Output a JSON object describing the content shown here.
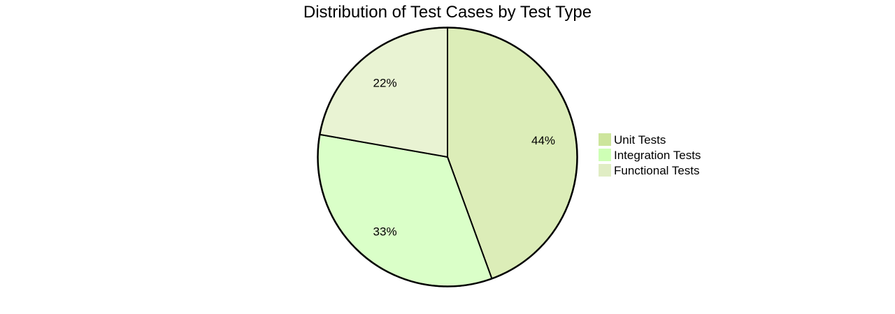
{
  "chart_data": {
    "type": "pie",
    "title": "Distribution of Test Cases by Test Type",
    "slices": [
      {
        "name": "Unit Tests",
        "value": 44,
        "label": "44%",
        "color": "#dcedb8",
        "legend_color": "#cde59c"
      },
      {
        "name": "Integration Tests",
        "value": 33,
        "label": "33%",
        "color": "#daffc8",
        "legend_color": "#ceffb5"
      },
      {
        "name": "Functional Tests",
        "value": 22,
        "label": "22%",
        "color": "#e9f3d3",
        "legend_color": "#e0edc4"
      }
    ],
    "start_angle_deg": 0,
    "direction": "clockwise",
    "legend_position": "right"
  }
}
